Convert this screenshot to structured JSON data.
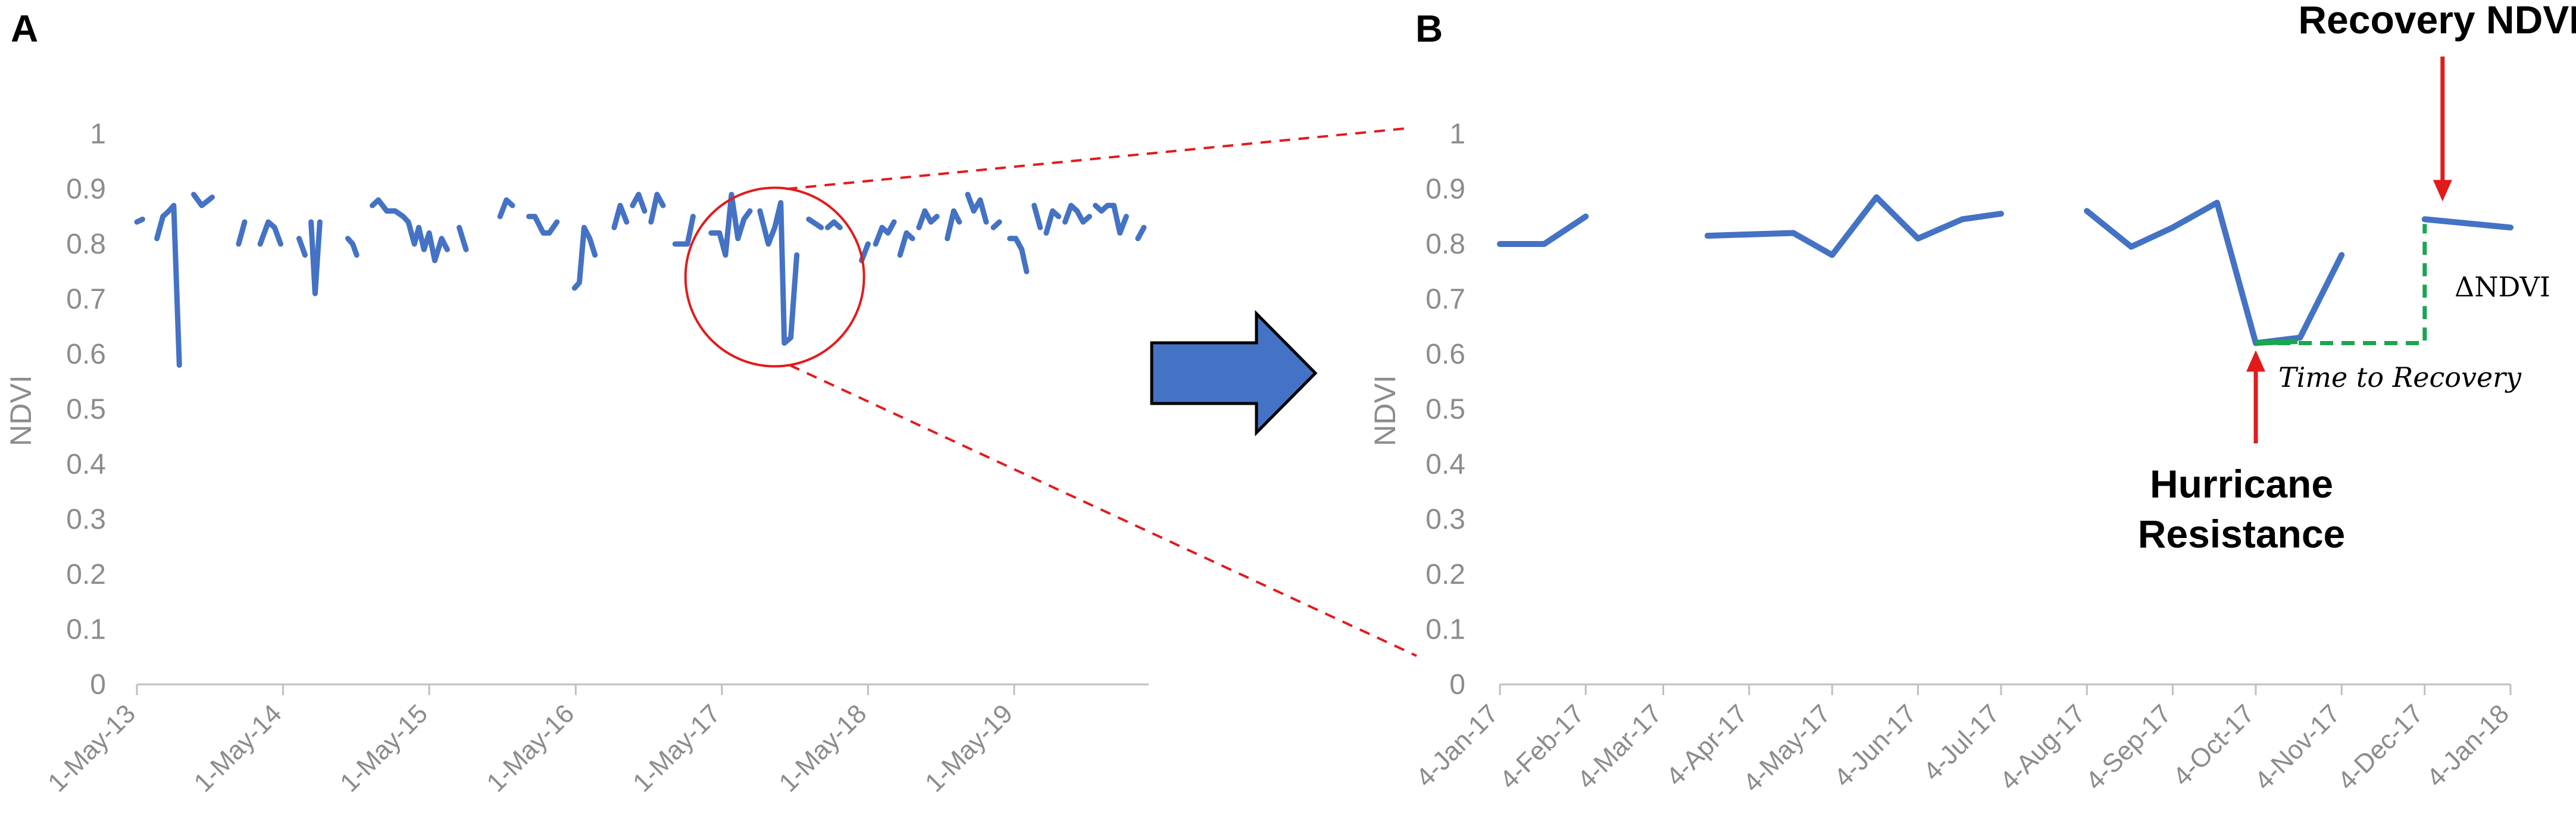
{
  "panels": {
    "a_letter": "A",
    "b_letter": "B"
  },
  "colors": {
    "series": "#4472C4",
    "axis": "#bfbfbf",
    "tick_text": "#8c8c8c",
    "highlight": "#e31a1c",
    "recovery_line": "#1aa550",
    "arrow_fill": "#4472C4"
  },
  "chart_data": [
    {
      "type": "line",
      "panel": "A",
      "ylabel": "NDVI",
      "xlabel": "",
      "ylim": [
        0,
        1
      ],
      "yticks": [
        "0",
        "0.1",
        "0.2",
        "0.3",
        "0.4",
        "0.5",
        "0.6",
        "0.7",
        "0.8",
        "0.9",
        "1"
      ],
      "xlim": [
        "2013-05-01",
        "2020-04-01"
      ],
      "xticks": [
        {
          "date": "2013-05-01",
          "label": "1-May-13"
        },
        {
          "date": "2014-05-01",
          "label": "1-May-14"
        },
        {
          "date": "2015-05-01",
          "label": "1-May-15"
        },
        {
          "date": "2016-05-01",
          "label": "1-May-16"
        },
        {
          "date": "2017-05-01",
          "label": "1-May-17"
        },
        {
          "date": "2018-05-01",
          "label": "1-May-18"
        },
        {
          "date": "2019-05-01",
          "label": "1-May-19"
        }
      ],
      "legend": "none",
      "highlight_circle": {
        "center_date": "2017-09-10",
        "center_y": 0.74,
        "note": "zoomed region"
      },
      "segments": [
        [
          [
            "2013-05-01",
            0.84
          ],
          [
            "2013-05-15",
            0.845
          ]
        ],
        [
          [
            "2013-06-20",
            0.81
          ],
          [
            "2013-07-05",
            0.85
          ],
          [
            "2013-07-20",
            0.86
          ],
          [
            "2013-08-01",
            0.87
          ],
          [
            "2013-08-15",
            0.58
          ]
        ],
        [
          [
            "2013-09-20",
            0.89
          ],
          [
            "2013-10-10",
            0.87
          ],
          [
            "2013-11-05",
            0.885
          ]
        ],
        [
          [
            "2014-01-10",
            0.8
          ],
          [
            "2014-01-25",
            0.84
          ]
        ],
        [
          [
            "2014-03-05",
            0.8
          ],
          [
            "2014-03-25",
            0.84
          ],
          [
            "2014-04-10",
            0.83
          ],
          [
            "2014-04-25",
            0.8
          ]
        ],
        [
          [
            "2014-06-10",
            0.81
          ],
          [
            "2014-06-25",
            0.78
          ]
        ],
        [
          [
            "2014-07-10",
            0.84
          ],
          [
            "2014-07-20",
            0.71
          ],
          [
            "2014-08-01",
            0.84
          ]
        ],
        [
          [
            "2014-10-10",
            0.81
          ],
          [
            "2014-10-22",
            0.8
          ],
          [
            "2014-11-01",
            0.78
          ]
        ],
        [
          [
            "2014-12-10",
            0.87
          ],
          [
            "2014-12-25",
            0.88
          ],
          [
            "2015-01-15",
            0.86
          ],
          [
            "2015-02-05",
            0.86
          ],
          [
            "2015-02-25",
            0.85
          ],
          [
            "2015-03-10",
            0.84
          ],
          [
            "2015-03-25",
            0.8
          ],
          [
            "2015-04-05",
            0.83
          ],
          [
            "2015-04-18",
            0.79
          ],
          [
            "2015-05-01",
            0.82
          ],
          [
            "2015-05-15",
            0.77
          ],
          [
            "2015-06-01",
            0.81
          ],
          [
            "2015-06-15",
            0.79
          ]
        ],
        [
          [
            "2015-07-15",
            0.83
          ],
          [
            "2015-08-01",
            0.79
          ]
        ],
        [
          [
            "2015-10-25",
            0.85
          ],
          [
            "2015-11-10",
            0.88
          ],
          [
            "2015-11-25",
            0.87
          ]
        ],
        [
          [
            "2016-01-05",
            0.85
          ],
          [
            "2016-01-20",
            0.85
          ],
          [
            "2016-02-10",
            0.82
          ],
          [
            "2016-02-25",
            0.82
          ],
          [
            "2016-03-15",
            0.84
          ]
        ],
        [
          [
            "2016-04-28",
            0.72
          ],
          [
            "2016-05-10",
            0.73
          ],
          [
            "2016-05-22",
            0.83
          ],
          [
            "2016-06-05",
            0.81
          ],
          [
            "2016-06-18",
            0.78
          ]
        ],
        [
          [
            "2016-08-05",
            0.83
          ],
          [
            "2016-08-20",
            0.87
          ],
          [
            "2016-09-05",
            0.84
          ]
        ],
        [
          [
            "2016-09-20",
            0.87
          ],
          [
            "2016-10-05",
            0.89
          ],
          [
            "2016-10-20",
            0.86
          ]
        ],
        [
          [
            "2016-11-05",
            0.84
          ],
          [
            "2016-11-20",
            0.89
          ],
          [
            "2016-12-05",
            0.87
          ]
        ],
        [
          [
            "2017-01-04",
            0.8
          ],
          [
            "2017-02-04",
            0.8
          ],
          [
            "2017-02-18",
            0.85
          ]
        ],
        [
          [
            "2017-04-04",
            0.82
          ],
          [
            "2017-04-25",
            0.82
          ],
          [
            "2017-05-10",
            0.78
          ],
          [
            "2017-05-25",
            0.89
          ],
          [
            "2017-06-10",
            0.81
          ],
          [
            "2017-06-25",
            0.845
          ],
          [
            "2017-07-10",
            0.86
          ]
        ],
        [
          [
            "2017-08-04",
            0.86
          ],
          [
            "2017-08-25",
            0.8
          ],
          [
            "2017-09-10",
            0.83
          ],
          [
            "2017-09-25",
            0.875
          ],
          [
            "2017-10-04",
            0.62
          ],
          [
            "2017-10-20",
            0.63
          ],
          [
            "2017-11-04",
            0.78
          ]
        ],
        [
          [
            "2017-12-04",
            0.845
          ],
          [
            "2018-01-04",
            0.83
          ]
        ],
        [
          [
            "2018-01-20",
            0.83
          ],
          [
            "2018-02-05",
            0.84
          ],
          [
            "2018-02-20",
            0.83
          ]
        ],
        [
          [
            "2018-04-15",
            0.77
          ],
          [
            "2018-05-01",
            0.8
          ]
        ],
        [
          [
            "2018-05-20",
            0.8
          ],
          [
            "2018-06-05",
            0.83
          ],
          [
            "2018-06-20",
            0.82
          ],
          [
            "2018-07-05",
            0.84
          ]
        ],
        [
          [
            "2018-07-20",
            0.78
          ],
          [
            "2018-08-05",
            0.82
          ],
          [
            "2018-08-20",
            0.81
          ]
        ],
        [
          [
            "2018-09-05",
            0.83
          ],
          [
            "2018-09-20",
            0.86
          ],
          [
            "2018-10-05",
            0.84
          ],
          [
            "2018-10-20",
            0.85
          ]
        ],
        [
          [
            "2018-11-15",
            0.81
          ],
          [
            "2018-12-01",
            0.86
          ],
          [
            "2018-12-15",
            0.84
          ]
        ],
        [
          [
            "2019-01-05",
            0.89
          ],
          [
            "2019-01-20",
            0.86
          ],
          [
            "2019-02-05",
            0.88
          ],
          [
            "2019-02-20",
            0.84
          ]
        ],
        [
          [
            "2019-03-10",
            0.83
          ],
          [
            "2019-03-25",
            0.84
          ]
        ],
        [
          [
            "2019-04-20",
            0.81
          ],
          [
            "2019-05-05",
            0.81
          ],
          [
            "2019-05-20",
            0.79
          ],
          [
            "2019-06-01",
            0.75
          ]
        ],
        [
          [
            "2019-06-20",
            0.87
          ],
          [
            "2019-07-05",
            0.83
          ]
        ],
        [
          [
            "2019-07-20",
            0.82
          ],
          [
            "2019-08-05",
            0.86
          ],
          [
            "2019-08-20",
            0.85
          ]
        ],
        [
          [
            "2019-09-05",
            0.84
          ],
          [
            "2019-09-20",
            0.87
          ],
          [
            "2019-10-05",
            0.86
          ],
          [
            "2019-10-20",
            0.84
          ],
          [
            "2019-11-05",
            0.85
          ]
        ],
        [
          [
            "2019-11-20",
            0.87
          ],
          [
            "2019-12-05",
            0.86
          ],
          [
            "2019-12-20",
            0.87
          ],
          [
            "2020-01-05",
            0.87
          ],
          [
            "2020-01-20",
            0.82
          ],
          [
            "2020-02-05",
            0.85
          ]
        ],
        [
          [
            "2020-03-05",
            0.81
          ],
          [
            "2020-03-20",
            0.83
          ]
        ]
      ]
    },
    {
      "type": "line",
      "panel": "B",
      "ylabel": "NDVI",
      "xlabel": "",
      "ylim": [
        0,
        1
      ],
      "yticks": [
        "0",
        "0.1",
        "0.2",
        "0.3",
        "0.4",
        "0.5",
        "0.6",
        "0.7",
        "0.8",
        "0.9",
        "1"
      ],
      "xlim": [
        "2017-01-04",
        "2018-01-04"
      ],
      "xticks": [
        {
          "date": "2017-01-04",
          "label": "4-Jan-17"
        },
        {
          "date": "2017-02-04",
          "label": "4-Feb-17"
        },
        {
          "date": "2017-03-04",
          "label": "4-Mar-17"
        },
        {
          "date": "2017-04-04",
          "label": "4-Apr-17"
        },
        {
          "date": "2017-05-04",
          "label": "4-May-17"
        },
        {
          "date": "2017-06-04",
          "label": "4-Jun-17"
        },
        {
          "date": "2017-07-04",
          "label": "4-Jul-17"
        },
        {
          "date": "2017-08-04",
          "label": "4-Aug-17"
        },
        {
          "date": "2017-09-04",
          "label": "4-Sep-17"
        },
        {
          "date": "2017-10-04",
          "label": "4-Oct-17"
        },
        {
          "date": "2017-11-04",
          "label": "4-Nov-17"
        },
        {
          "date": "2017-12-04",
          "label": "4-Dec-17"
        },
        {
          "date": "2018-01-04",
          "label": "4-Jan-18"
        }
      ],
      "legend": "none",
      "segments": [
        [
          [
            "2017-01-04",
            0.8
          ],
          [
            "2017-01-20",
            0.8
          ],
          [
            "2017-02-04",
            0.85
          ]
        ],
        [
          [
            "2017-03-20",
            0.815
          ],
          [
            "2017-04-20",
            0.82
          ],
          [
            "2017-05-04",
            0.78
          ],
          [
            "2017-05-20",
            0.885
          ],
          [
            "2017-06-04",
            0.81
          ],
          [
            "2017-06-20",
            0.845
          ],
          [
            "2017-07-04",
            0.855
          ]
        ],
        [
          [
            "2017-08-04",
            0.86
          ],
          [
            "2017-08-20",
            0.795
          ],
          [
            "2017-09-04",
            0.83
          ],
          [
            "2017-09-20",
            0.875
          ],
          [
            "2017-10-04",
            0.62
          ],
          [
            "2017-10-20",
            0.63
          ],
          [
            "2017-11-04",
            0.78
          ]
        ],
        [
          [
            "2017-12-04",
            0.845
          ],
          [
            "2018-01-04",
            0.83
          ]
        ]
      ],
      "annotations": {
        "recovery_ndvi": "Recovery NDVI",
        "delta_ndvi": "ΔNDVI",
        "time_to_recovery": "Time to Recovery",
        "hurricane_resistance_line1": "Hurricane",
        "hurricane_resistance_line2": "Resistance",
        "resistance_point": {
          "date": "2017-10-04",
          "y": 0.62
        },
        "recovery_point": {
          "date": "2017-12-04",
          "y": 0.845
        },
        "baseline_y": 0.62
      }
    }
  ]
}
